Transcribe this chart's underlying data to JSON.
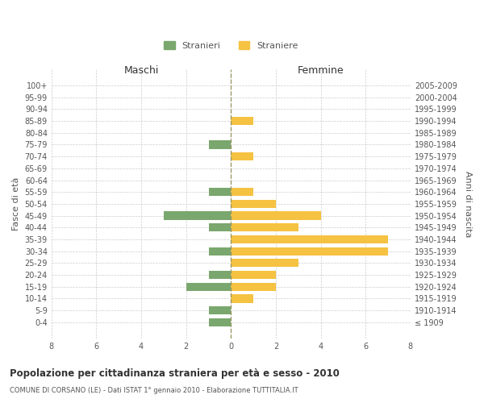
{
  "age_groups": [
    "100+",
    "95-99",
    "90-94",
    "85-89",
    "80-84",
    "75-79",
    "70-74",
    "65-69",
    "60-64",
    "55-59",
    "50-54",
    "45-49",
    "40-44",
    "35-39",
    "30-34",
    "25-29",
    "20-24",
    "15-19",
    "10-14",
    "5-9",
    "0-4"
  ],
  "birth_years": [
    "≤ 1909",
    "1910-1914",
    "1915-1919",
    "1920-1924",
    "1925-1929",
    "1930-1934",
    "1935-1939",
    "1940-1944",
    "1945-1949",
    "1950-1954",
    "1955-1959",
    "1960-1964",
    "1965-1969",
    "1970-1974",
    "1975-1979",
    "1980-1984",
    "1985-1989",
    "1990-1994",
    "1995-1999",
    "2000-2004",
    "2005-2009"
  ],
  "maschi": [
    0,
    0,
    0,
    0,
    0,
    1,
    0,
    0,
    0,
    1,
    0,
    3,
    1,
    0,
    1,
    0,
    1,
    2,
    0,
    1,
    1
  ],
  "femmine": [
    0,
    0,
    0,
    1,
    0,
    0,
    1,
    0,
    0,
    1,
    2,
    4,
    3,
    7,
    7,
    3,
    2,
    2,
    1,
    0,
    0
  ],
  "male_color": "#7aa76d",
  "female_color": "#f5c242",
  "bar_height": 0.7,
  "xlim": 8,
  "title": "Popolazione per cittadinanza straniera per età e sesso - 2010",
  "subtitle": "COMUNE DI CORSANO (LE) - Dati ISTAT 1° gennaio 2010 - Elaborazione TUTTITALIA.IT",
  "ylabel_left": "Fasce di età",
  "ylabel_right": "Anni di nascita",
  "label_maschi": "Maschi",
  "label_femmine": "Femmine",
  "legend_stranieri": "Stranieri",
  "legend_straniere": "Straniere",
  "bg_color": "#ffffff",
  "grid_color": "#cccccc",
  "text_color": "#555555",
  "title_color": "#333333",
  "dashed_line_color": "#999966"
}
